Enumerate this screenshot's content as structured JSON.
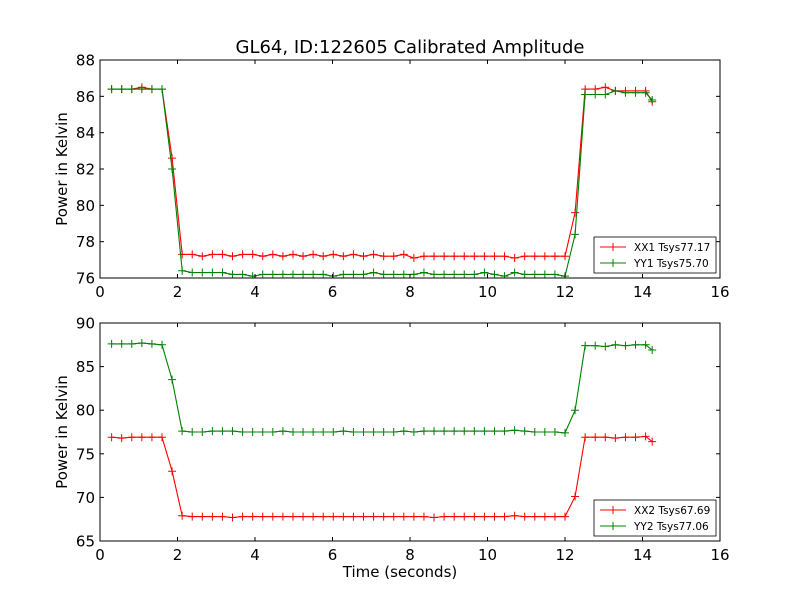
{
  "chart_data": [
    {
      "type": "line",
      "title": "GL64, ID:122605 Calibrated Amplitude",
      "xlabel": "",
      "ylabel": "Power in Kelvin",
      "xlim": [
        0,
        16
      ],
      "ylim": [
        76,
        88
      ],
      "xticks": [
        "0",
        "2",
        "4",
        "6",
        "8",
        "10",
        "12",
        "14",
        "16"
      ],
      "yticks": [
        "76",
        "78",
        "80",
        "82",
        "84",
        "86",
        "88"
      ],
      "legend_position": "lower-right",
      "grid": false,
      "series": [
        {
          "name": "XX1 Tsys77.17",
          "color": "#ff0000",
          "x": [
            0.3,
            0.56,
            0.82,
            1.08,
            1.34,
            1.6,
            1.86,
            2.12,
            2.38,
            2.64,
            2.9,
            3.16,
            3.42,
            3.68,
            3.94,
            4.2,
            4.46,
            4.72,
            4.98,
            5.24,
            5.5,
            5.76,
            6.02,
            6.28,
            6.54,
            6.8,
            7.06,
            7.32,
            7.58,
            7.84,
            8.1,
            8.36,
            8.62,
            8.88,
            9.14,
            9.4,
            9.66,
            9.92,
            10.18,
            10.44,
            10.7,
            10.96,
            11.22,
            11.48,
            11.74,
            12.0,
            12.26,
            12.52,
            12.78,
            13.04,
            13.3,
            13.56,
            13.82,
            14.08,
            14.25
          ],
          "y": [
            86.4,
            86.4,
            86.4,
            86.5,
            86.4,
            86.4,
            82.6,
            77.3,
            77.3,
            77.2,
            77.3,
            77.3,
            77.2,
            77.3,
            77.3,
            77.2,
            77.3,
            77.2,
            77.3,
            77.2,
            77.3,
            77.2,
            77.3,
            77.2,
            77.3,
            77.2,
            77.3,
            77.2,
            77.2,
            77.3,
            77.1,
            77.2,
            77.2,
            77.2,
            77.2,
            77.2,
            77.2,
            77.2,
            77.2,
            77.2,
            77.1,
            77.2,
            77.2,
            77.2,
            77.2,
            77.2,
            79.6,
            86.4,
            86.4,
            86.5,
            86.3,
            86.3,
            86.3,
            86.3,
            85.7
          ]
        },
        {
          "name": "YY1 Tsys75.70",
          "color": "#008000",
          "x": [
            0.3,
            0.56,
            0.82,
            1.08,
            1.34,
            1.6,
            1.86,
            2.12,
            2.38,
            2.64,
            2.9,
            3.16,
            3.42,
            3.68,
            3.94,
            4.2,
            4.46,
            4.72,
            4.98,
            5.24,
            5.5,
            5.76,
            6.02,
            6.28,
            6.54,
            6.8,
            7.06,
            7.32,
            7.58,
            7.84,
            8.1,
            8.36,
            8.62,
            8.88,
            9.14,
            9.4,
            9.66,
            9.92,
            10.18,
            10.44,
            10.7,
            10.96,
            11.22,
            11.48,
            11.74,
            12.0,
            12.26,
            12.52,
            12.78,
            13.04,
            13.3,
            13.56,
            13.82,
            14.08,
            14.25
          ],
          "y": [
            86.4,
            86.4,
            86.4,
            86.4,
            86.4,
            86.4,
            82.0,
            76.4,
            76.3,
            76.3,
            76.3,
            76.3,
            76.2,
            76.2,
            76.1,
            76.2,
            76.2,
            76.2,
            76.2,
            76.2,
            76.2,
            76.2,
            76.1,
            76.2,
            76.2,
            76.2,
            76.3,
            76.2,
            76.2,
            76.2,
            76.2,
            76.3,
            76.2,
            76.2,
            76.2,
            76.2,
            76.2,
            76.3,
            76.2,
            76.1,
            76.3,
            76.2,
            76.2,
            76.2,
            76.2,
            76.1,
            78.4,
            86.1,
            86.1,
            86.1,
            86.3,
            86.2,
            86.2,
            86.2,
            85.8
          ]
        }
      ]
    },
    {
      "type": "line",
      "title": "",
      "xlabel": "Time (seconds)",
      "ylabel": "Power in Kelvin",
      "xlim": [
        0,
        16
      ],
      "ylim": [
        65,
        90
      ],
      "xticks": [
        "0",
        "2",
        "4",
        "6",
        "8",
        "10",
        "12",
        "14",
        "16"
      ],
      "yticks": [
        "65",
        "70",
        "75",
        "80",
        "85",
        "90"
      ],
      "legend_position": "lower-right",
      "grid": false,
      "series": [
        {
          "name": "XX2 Tsys67.69",
          "color": "#ff0000",
          "x": [
            0.3,
            0.56,
            0.82,
            1.08,
            1.34,
            1.6,
            1.86,
            2.12,
            2.38,
            2.64,
            2.9,
            3.16,
            3.42,
            3.68,
            3.94,
            4.2,
            4.46,
            4.72,
            4.98,
            5.24,
            5.5,
            5.76,
            6.02,
            6.28,
            6.54,
            6.8,
            7.06,
            7.32,
            7.58,
            7.84,
            8.1,
            8.36,
            8.62,
            8.88,
            9.14,
            9.4,
            9.66,
            9.92,
            10.18,
            10.44,
            10.7,
            10.96,
            11.22,
            11.48,
            11.74,
            12.0,
            12.26,
            12.52,
            12.78,
            13.04,
            13.3,
            13.56,
            13.82,
            14.08,
            14.25
          ],
          "y": [
            76.9,
            76.8,
            76.9,
            76.9,
            76.9,
            76.9,
            73.0,
            67.9,
            67.8,
            67.8,
            67.8,
            67.8,
            67.7,
            67.8,
            67.8,
            67.8,
            67.8,
            67.8,
            67.8,
            67.8,
            67.8,
            67.8,
            67.8,
            67.8,
            67.8,
            67.8,
            67.8,
            67.8,
            67.8,
            67.8,
            67.8,
            67.8,
            67.7,
            67.8,
            67.8,
            67.8,
            67.8,
            67.8,
            67.8,
            67.8,
            67.9,
            67.8,
            67.8,
            67.8,
            67.8,
            67.8,
            70.1,
            76.9,
            76.9,
            76.9,
            76.8,
            76.9,
            76.9,
            77.0,
            76.4
          ]
        },
        {
          "name": "YY2 Tsys77.06",
          "color": "#008000",
          "x": [
            0.3,
            0.56,
            0.82,
            1.08,
            1.34,
            1.6,
            1.86,
            2.12,
            2.38,
            2.64,
            2.9,
            3.16,
            3.42,
            3.68,
            3.94,
            4.2,
            4.46,
            4.72,
            4.98,
            5.24,
            5.5,
            5.76,
            6.02,
            6.28,
            6.54,
            6.8,
            7.06,
            7.32,
            7.58,
            7.84,
            8.1,
            8.36,
            8.62,
            8.88,
            9.14,
            9.4,
            9.66,
            9.92,
            10.18,
            10.44,
            10.7,
            10.96,
            11.22,
            11.48,
            11.74,
            12.0,
            12.26,
            12.52,
            12.78,
            13.04,
            13.3,
            13.56,
            13.82,
            14.08,
            14.25
          ],
          "y": [
            87.6,
            87.6,
            87.6,
            87.7,
            87.6,
            87.5,
            83.5,
            77.6,
            77.5,
            77.5,
            77.6,
            77.6,
            77.6,
            77.5,
            77.5,
            77.5,
            77.5,
            77.6,
            77.5,
            77.5,
            77.5,
            77.5,
            77.5,
            77.6,
            77.5,
            77.5,
            77.5,
            77.5,
            77.5,
            77.6,
            77.5,
            77.6,
            77.6,
            77.6,
            77.6,
            77.6,
            77.6,
            77.6,
            77.6,
            77.6,
            77.7,
            77.6,
            77.5,
            77.5,
            77.5,
            77.4,
            80.0,
            87.4,
            87.4,
            87.3,
            87.5,
            87.4,
            87.5,
            87.5,
            86.9
          ]
        }
      ]
    }
  ]
}
